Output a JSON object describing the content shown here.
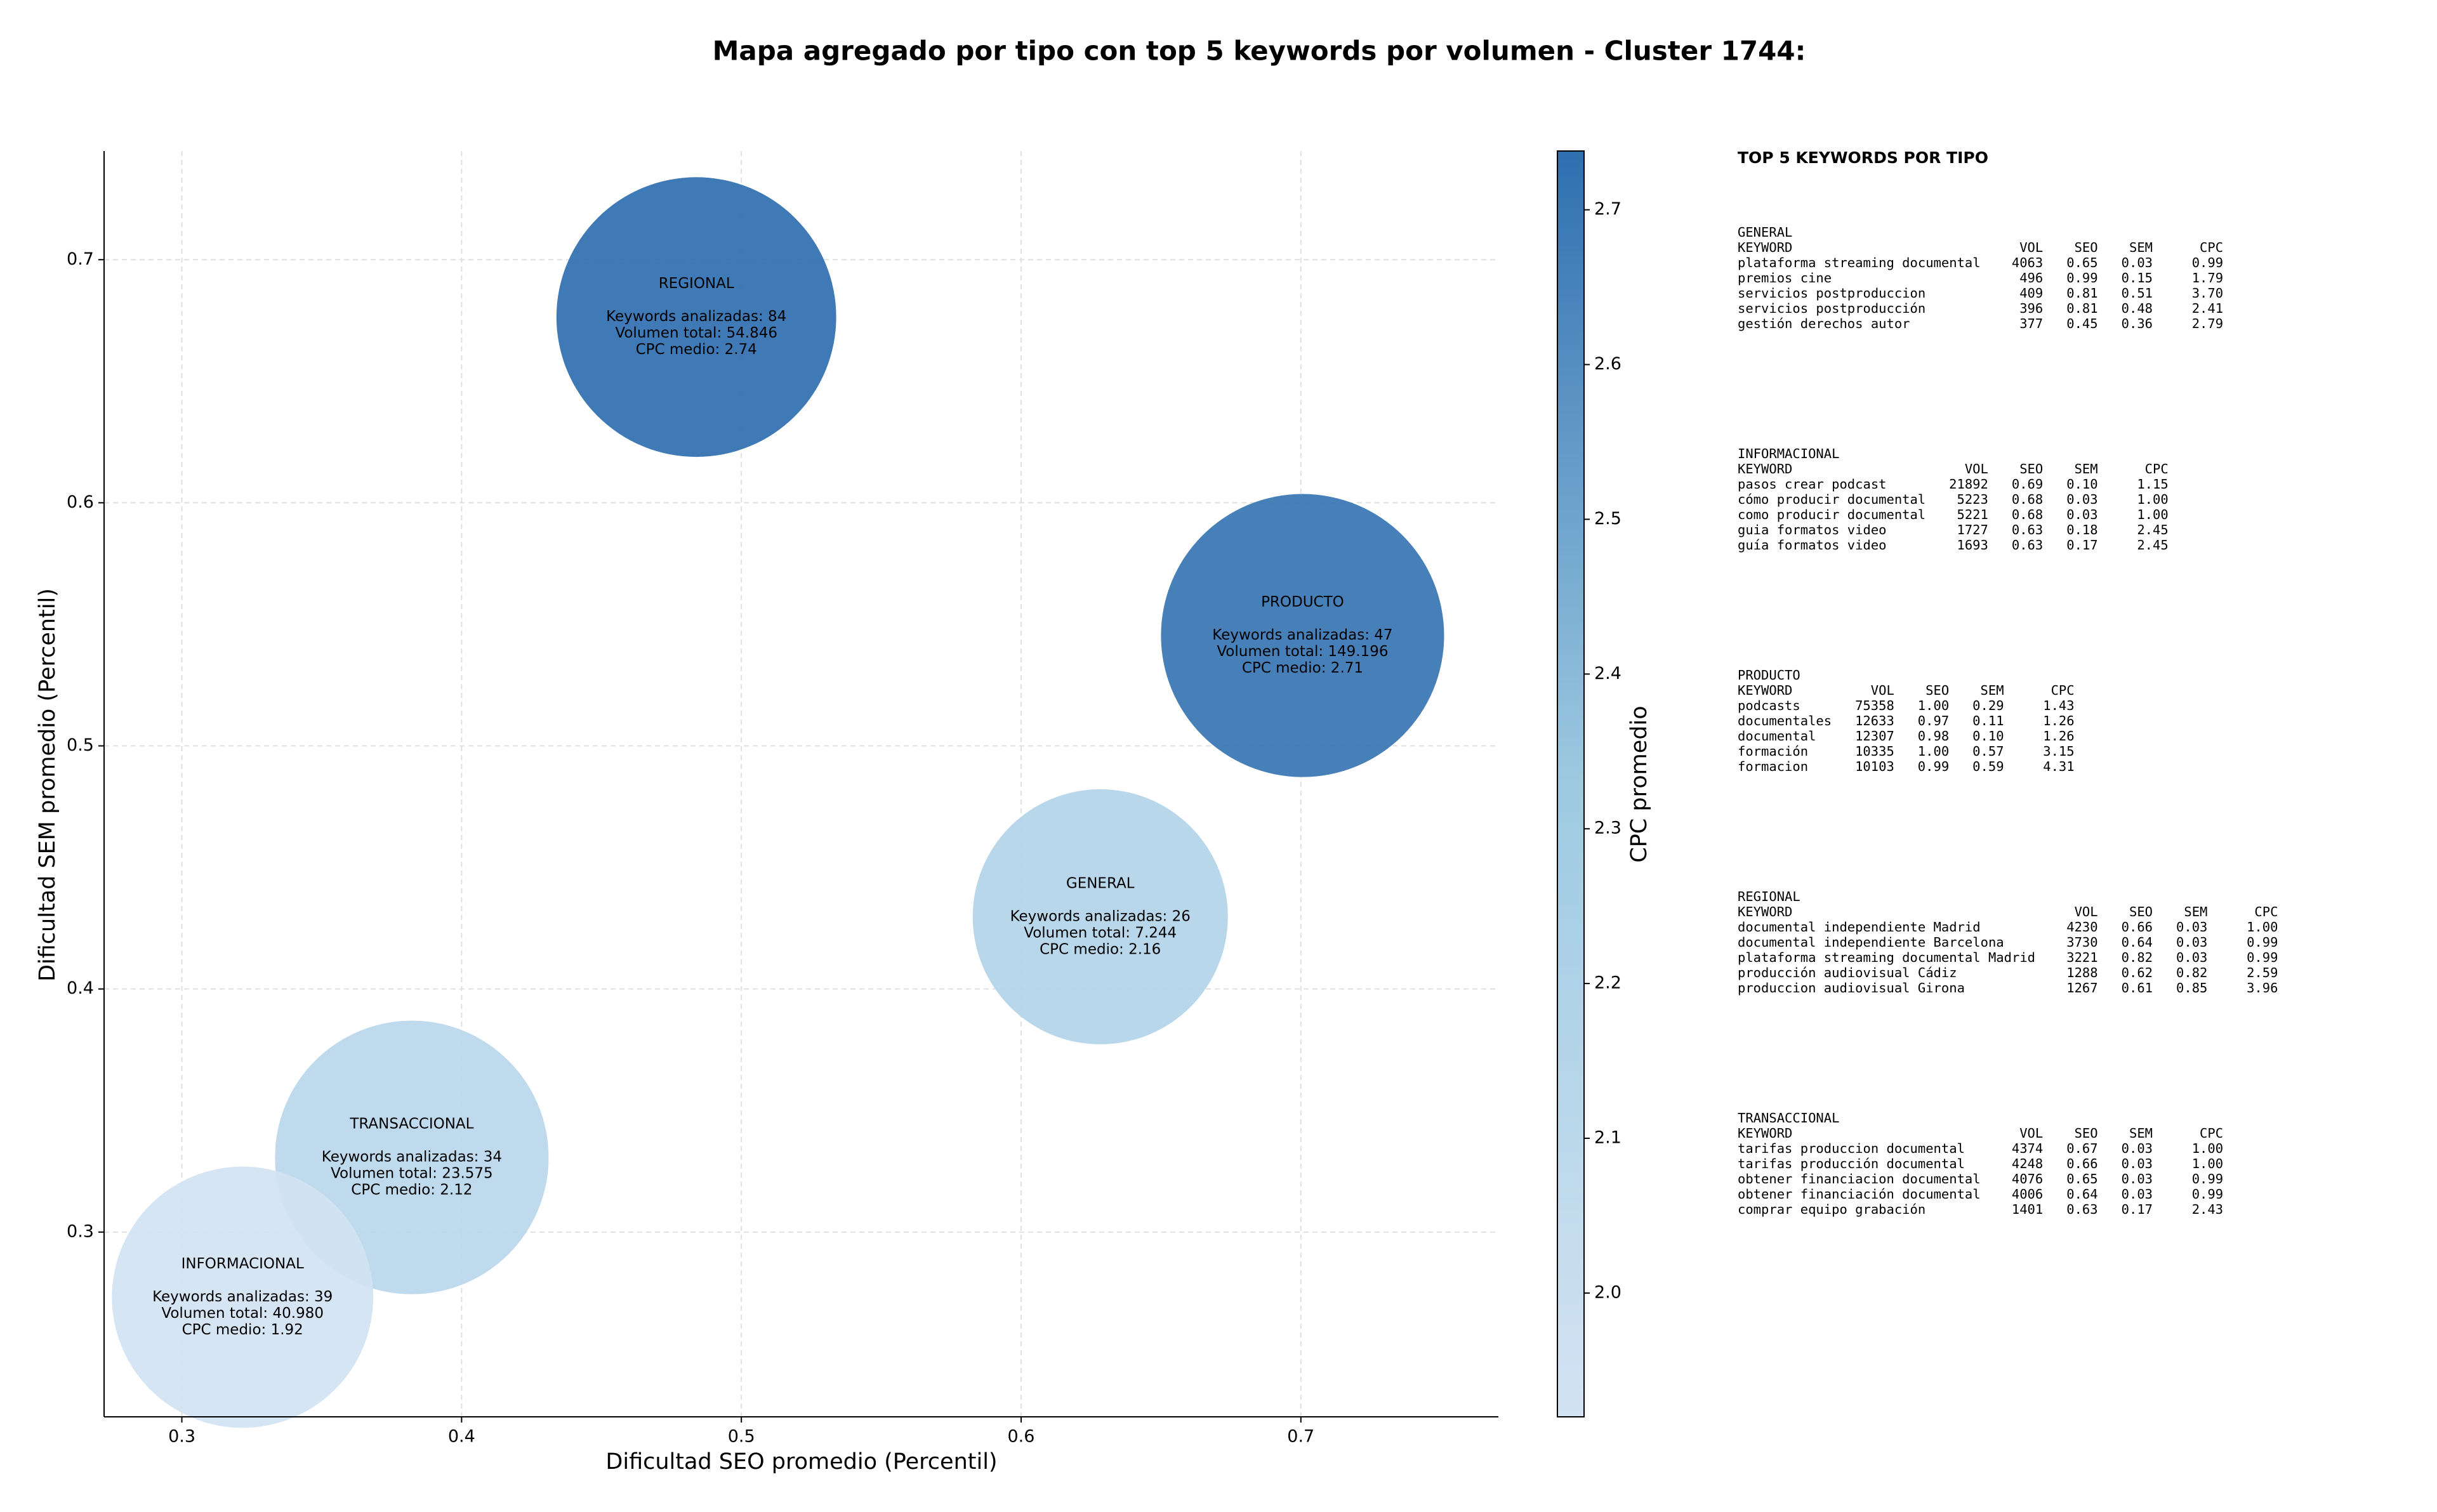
{
  "chart_data": {
    "type": "bubble",
    "title": "Mapa agregado por tipo con top 5 keywords por volumen - Cluster 1744:",
    "x_label": "Dificultad SEO promedio (Percentil)",
    "y_label": "Dificultad SEM promedio (Percentil)",
    "colorbar_label": "CPC promedio",
    "categories": [
      "REGIONAL",
      "PRODUCTO",
      "GENERAL",
      "TRANSACCIONAL",
      "INFORMACIONAL"
    ],
    "x": [
      0.4839,
      0.7006,
      0.6283,
      0.3822,
      0.3217
    ],
    "y": [
      0.6764,
      0.5454,
      0.4297,
      0.3307,
      0.2732
    ],
    "sizes": [
      0.05,
      0.0506,
      0.0456,
      0.0489,
      0.0467
    ],
    "color_values": [
      2.74,
      2.71,
      2.16,
      2.12,
      1.92
    ],
    "annotations": [
      [
        "Keywords analizadas: 84",
        "Volumen total: 54.846",
        "CPC medio: 2.74"
      ],
      [
        "Keywords analizadas: 47",
        "Volumen total: 149.196",
        "CPC medio: 2.71"
      ],
      [
        "Keywords analizadas: 26",
        "Volumen total: 7.244",
        "CPC medio: 2.16"
      ],
      [
        "Keywords analizadas: 34",
        "Volumen total: 23.575",
        "CPC medio: 2.12"
      ],
      [
        "Keywords analizadas: 39",
        "Volumen total: 40.980",
        "CPC medio: 1.92"
      ]
    ],
    "colormap": [
      "#d3e3f3",
      "#9dcae1",
      "#2f6fb0"
    ],
    "clim": [
      1.92,
      2.738
    ],
    "cticks": [
      {
        "value": 2.0,
        "label": "2.0"
      },
      2.1,
      2.2,
      2.3,
      2.4,
      2.5,
      2.6,
      2.7
    ],
    "xlim": [
      0.2722,
      0.7706
    ],
    "ylim": [
      0.224,
      0.7447
    ],
    "xticks": [
      0.3,
      0.4,
      0.5,
      0.6,
      0.7
    ],
    "yticks": [
      0.3,
      0.4,
      0.5,
      0.6,
      0.7
    ],
    "grid": true
  },
  "keyword_panel": {
    "title": "TOP 5 KEYWORDS POR TIPO",
    "header": [
      "KEYWORD",
      "VOL",
      "SEO",
      "SEM",
      "CPC"
    ],
    "sections": [
      {
        "name": "GENERAL",
        "rows": [
          [
            "plataforma streaming documental",
            "4063",
            "0.65",
            "0.03",
            "0.99"
          ],
          [
            "premios cine",
            "496",
            "0.99",
            "0.15",
            "1.79"
          ],
          [
            "servicios postproduccion",
            "409",
            "0.81",
            "0.51",
            "3.70"
          ],
          [
            "servicios postproducción",
            "396",
            "0.81",
            "0.48",
            "2.41"
          ],
          [
            "gestión derechos autor",
            "377",
            "0.45",
            "0.36",
            "2.79"
          ]
        ]
      },
      {
        "name": "INFORMACIONAL",
        "rows": [
          [
            "pasos crear podcast",
            "21892",
            "0.69",
            "0.10",
            "1.15"
          ],
          [
            "cómo producir documental",
            "5223",
            "0.68",
            "0.03",
            "1.00"
          ],
          [
            "como producir documental",
            "5221",
            "0.68",
            "0.03",
            "1.00"
          ],
          [
            "guia formatos video",
            "1727",
            "0.63",
            "0.18",
            "2.45"
          ],
          [
            "guía formatos video",
            "1693",
            "0.63",
            "0.17",
            "2.45"
          ]
        ]
      },
      {
        "name": "PRODUCTO",
        "rows": [
          [
            "podcasts",
            "75358",
            "1.00",
            "0.29",
            "1.43"
          ],
          [
            "documentales",
            "12633",
            "0.97",
            "0.11",
            "1.26"
          ],
          [
            "documental",
            "12307",
            "0.98",
            "0.10",
            "1.26"
          ],
          [
            "formación",
            "10335",
            "1.00",
            "0.57",
            "3.15"
          ],
          [
            "formacion",
            "10103",
            "0.99",
            "0.59",
            "4.31"
          ]
        ]
      },
      {
        "name": "REGIONAL",
        "rows": [
          [
            "documental independiente Madrid",
            "4230",
            "0.66",
            "0.03",
            "1.00"
          ],
          [
            "documental independiente Barcelona",
            "3730",
            "0.64",
            "0.03",
            "0.99"
          ],
          [
            "plataforma streaming documental Madrid",
            "3221",
            "0.82",
            "0.03",
            "0.99"
          ],
          [
            "producción audiovisual Cádiz",
            "1288",
            "0.62",
            "0.82",
            "2.59"
          ],
          [
            "produccion audiovisual Girona",
            "1267",
            "0.61",
            "0.85",
            "3.96"
          ]
        ]
      },
      {
        "name": "TRANSACCIONAL",
        "rows": [
          [
            "tarifas produccion documental",
            "4374",
            "0.67",
            "0.03",
            "1.00"
          ],
          [
            "tarifas producción documental",
            "4248",
            "0.66",
            "0.03",
            "1.00"
          ],
          [
            "obtener financiacion documental",
            "4076",
            "0.65",
            "0.03",
            "0.99"
          ],
          [
            "obtener financiación documental",
            "4006",
            "0.64",
            "0.03",
            "0.99"
          ],
          [
            "comprar equipo grabación",
            "1401",
            "0.63",
            "0.17",
            "2.43"
          ]
        ]
      }
    ]
  }
}
